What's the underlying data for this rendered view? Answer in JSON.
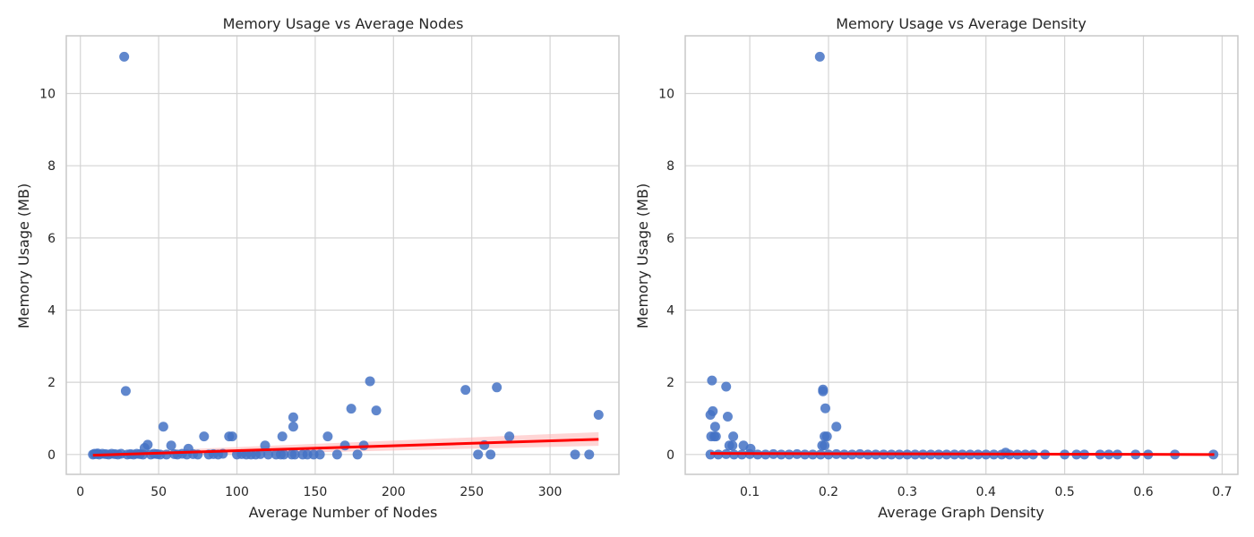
{
  "colors": {
    "points": "#4472c4",
    "fit_line": "#ff0000",
    "ci_band": "#ffb3b3",
    "grid": "#d4d4d4",
    "frame": "#c8c8c8"
  },
  "chart_data": [
    {
      "type": "scatter",
      "title": "Memory Usage vs Average Nodes",
      "xlabel": "Average Number of Nodes",
      "ylabel": "Memory Usage (MB)",
      "xlim": [
        -9,
        344
      ],
      "ylim": [
        -0.55,
        11.6
      ],
      "xticks": [
        0,
        50,
        100,
        150,
        200,
        250,
        300
      ],
      "yticks": [
        0,
        2,
        4,
        6,
        8,
        10
      ],
      "grid": true,
      "regression": {
        "x": [
          8,
          331
        ],
        "y": [
          -0.02,
          0.42
        ],
        "ci_low": [
          -0.08,
          0.24
        ],
        "ci_high": [
          0.04,
          0.62
        ]
      },
      "points": [
        [
          28,
          11.02
        ],
        [
          29,
          1.76
        ],
        [
          8,
          0
        ],
        [
          9,
          0.02
        ],
        [
          10,
          0.01
        ],
        [
          11,
          0.03
        ],
        [
          12,
          0
        ],
        [
          14,
          0.02
        ],
        [
          16,
          0.01
        ],
        [
          18,
          0
        ],
        [
          20,
          0.02
        ],
        [
          22,
          0.01
        ],
        [
          24,
          0
        ],
        [
          26,
          0.02
        ],
        [
          30,
          0
        ],
        [
          32,
          0.01
        ],
        [
          34,
          0
        ],
        [
          36,
          0.02
        ],
        [
          38,
          0.01
        ],
        [
          40,
          0
        ],
        [
          41,
          0.18
        ],
        [
          43,
          0.27
        ],
        [
          45,
          0
        ],
        [
          47,
          0.02
        ],
        [
          49,
          0.01
        ],
        [
          51,
          0
        ],
        [
          53,
          0.77
        ],
        [
          55,
          0
        ],
        [
          58,
          0.25
        ],
        [
          60,
          0.01
        ],
        [
          62,
          0
        ],
        [
          65,
          0.02
        ],
        [
          68,
          0
        ],
        [
          69,
          0.16
        ],
        [
          72,
          0.01
        ],
        [
          75,
          0
        ],
        [
          79,
          0.5
        ],
        [
          82,
          0
        ],
        [
          85,
          0.01
        ],
        [
          88,
          0
        ],
        [
          91,
          0.02
        ],
        [
          95,
          0.5
        ],
        [
          97,
          0.5
        ],
        [
          100,
          0
        ],
        [
          103,
          0.01
        ],
        [
          106,
          0
        ],
        [
          109,
          0
        ],
        [
          112,
          0
        ],
        [
          115,
          0.01
        ],
        [
          118,
          0.25
        ],
        [
          120,
          0
        ],
        [
          125,
          0
        ],
        [
          128,
          0
        ],
        [
          129,
          0.5
        ],
        [
          130,
          0
        ],
        [
          135,
          0
        ],
        [
          136,
          0.77
        ],
        [
          136,
          1.03
        ],
        [
          137,
          0
        ],
        [
          142,
          0
        ],
        [
          145,
          0
        ],
        [
          149,
          0
        ],
        [
          153,
          0
        ],
        [
          158,
          0.5
        ],
        [
          164,
          0
        ],
        [
          169,
          0.25
        ],
        [
          173,
          1.27
        ],
        [
          177,
          0
        ],
        [
          181,
          0.25
        ],
        [
          185,
          2.03
        ],
        [
          189,
          1.22
        ],
        [
          246,
          1.79
        ],
        [
          254,
          0
        ],
        [
          258,
          0.26
        ],
        [
          262,
          0
        ],
        [
          266,
          1.86
        ],
        [
          274,
          0.5
        ],
        [
          316,
          0
        ],
        [
          325,
          0
        ],
        [
          331,
          1.1
        ]
      ]
    },
    {
      "type": "scatter",
      "title": "Memory Usage vs Average Density",
      "xlabel": "Average Graph Density",
      "ylabel": "Memory Usage (MB)",
      "xlim": [
        0.018,
        0.72
      ],
      "ylim": [
        -0.55,
        11.6
      ],
      "xticks": [
        0.1,
        0.2,
        0.3,
        0.4,
        0.5,
        0.6,
        0.7
      ],
      "yticks": [
        0,
        2,
        4,
        6,
        8,
        10
      ],
      "grid": true,
      "regression": {
        "x": [
          0.05,
          0.69
        ],
        "y": [
          0.03,
          0.0
        ],
        "ci_low": [
          0.0,
          -0.03
        ],
        "ci_high": [
          0.06,
          0.03
        ]
      },
      "points": [
        [
          0.189,
          11.02
        ],
        [
          0.052,
          2.05
        ],
        [
          0.05,
          1.1
        ],
        [
          0.053,
          1.2
        ],
        [
          0.055,
          0.5
        ],
        [
          0.057,
          0.5
        ],
        [
          0.056,
          0.77
        ],
        [
          0.051,
          0.5
        ],
        [
          0.07,
          1.88
        ],
        [
          0.072,
          1.05
        ],
        [
          0.074,
          0.25
        ],
        [
          0.079,
          0.5
        ],
        [
          0.078,
          0.25
        ],
        [
          0.092,
          0.25
        ],
        [
          0.101,
          0.16
        ],
        [
          0.193,
          1.8
        ],
        [
          0.193,
          1.75
        ],
        [
          0.196,
          1.28
        ],
        [
          0.195,
          0.5
        ],
        [
          0.198,
          0.5
        ],
        [
          0.21,
          0.77
        ],
        [
          0.192,
          0.25
        ],
        [
          0.195,
          0.25
        ],
        [
          0.05,
          0
        ],
        [
          0.06,
          0
        ],
        [
          0.07,
          0.01
        ],
        [
          0.08,
          0
        ],
        [
          0.09,
          0
        ],
        [
          0.1,
          0.01
        ],
        [
          0.11,
          0
        ],
        [
          0.12,
          0
        ],
        [
          0.13,
          0.01
        ],
        [
          0.14,
          0
        ],
        [
          0.15,
          0
        ],
        [
          0.16,
          0.01
        ],
        [
          0.17,
          0
        ],
        [
          0.18,
          0
        ],
        [
          0.19,
          0
        ],
        [
          0.2,
          0
        ],
        [
          0.21,
          0.01
        ],
        [
          0.22,
          0
        ],
        [
          0.23,
          0
        ],
        [
          0.24,
          0.01
        ],
        [
          0.25,
          0
        ],
        [
          0.26,
          0
        ],
        [
          0.27,
          0
        ],
        [
          0.28,
          0
        ],
        [
          0.29,
          0
        ],
        [
          0.3,
          0
        ],
        [
          0.31,
          0
        ],
        [
          0.32,
          0
        ],
        [
          0.33,
          0
        ],
        [
          0.34,
          0
        ],
        [
          0.35,
          0
        ],
        [
          0.36,
          0
        ],
        [
          0.37,
          0
        ],
        [
          0.38,
          0
        ],
        [
          0.39,
          0
        ],
        [
          0.4,
          0
        ],
        [
          0.41,
          0
        ],
        [
          0.42,
          0
        ],
        [
          0.425,
          0.05
        ],
        [
          0.43,
          0
        ],
        [
          0.44,
          0
        ],
        [
          0.45,
          0
        ],
        [
          0.46,
          0
        ],
        [
          0.475,
          0
        ],
        [
          0.5,
          0
        ],
        [
          0.515,
          0
        ],
        [
          0.525,
          0
        ],
        [
          0.545,
          0
        ],
        [
          0.556,
          0
        ],
        [
          0.567,
          0
        ],
        [
          0.59,
          0
        ],
        [
          0.606,
          0
        ],
        [
          0.64,
          0
        ],
        [
          0.689,
          0
        ]
      ]
    }
  ]
}
